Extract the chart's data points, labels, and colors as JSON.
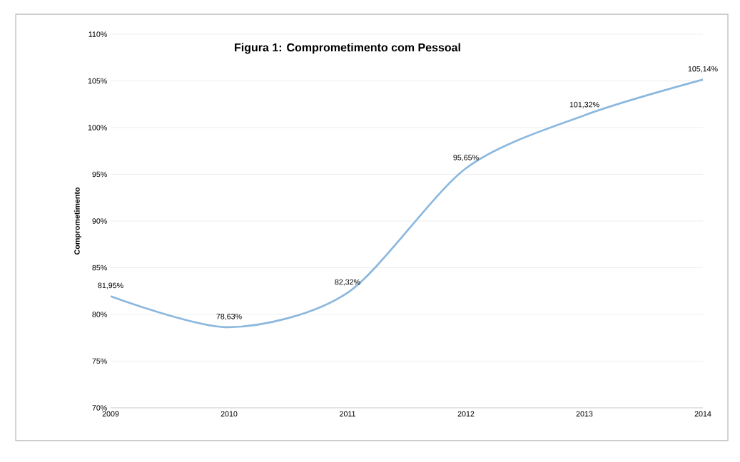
{
  "chart_data": {
    "type": "line",
    "title": "Figura 1: Comprometimento com Pessoal",
    "ylabel": "Comprometimento",
    "categories": [
      "2009",
      "2010",
      "2011",
      "2012",
      "2013",
      "2014"
    ],
    "series": [
      {
        "color": "#8cb8de",
        "values": [
          81.95,
          78.63,
          82.32,
          95.65,
          101.32,
          105.14
        ],
        "value_labels": [
          "81,95%",
          "78,63%",
          "82,32%",
          "95,65%",
          "101,32%",
          "105,14%"
        ]
      }
    ],
    "ylim": [
      70,
      110
    ],
    "yticks": [
      {
        "value": 70,
        "label": "70%"
      },
      {
        "value": 75,
        "label": "75%"
      },
      {
        "value": 80,
        "label": "80%"
      },
      {
        "value": 85,
        "label": "85%"
      },
      {
        "value": 90,
        "label": "90%"
      },
      {
        "value": 95,
        "label": "95%"
      },
      {
        "value": 100,
        "label": "100%"
      },
      {
        "value": 105,
        "label": "105%"
      },
      {
        "value": 110,
        "label": "110%"
      }
    ],
    "grid": "y",
    "marker": "none",
    "line_style": "solid"
  }
}
